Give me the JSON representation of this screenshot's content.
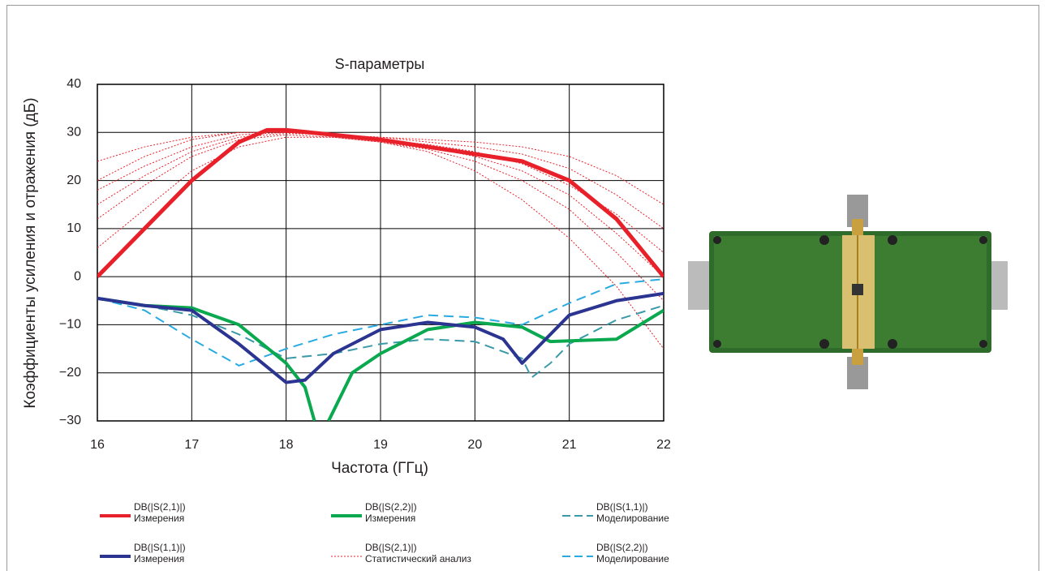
{
  "chart_data": {
    "type": "line",
    "title": "S-параметры",
    "xlabel": "Частота (ГГц)",
    "ylabel": "Коэффициенты усиления и отражения (дБ)",
    "xlim": [
      16,
      22
    ],
    "xticks": [
      16,
      17,
      18,
      19,
      20,
      21,
      22
    ],
    "ylim": [
      -30,
      40
    ],
    "yticks": [
      {
        "value": -30,
        "label": "−30"
      },
      {
        "value": -20,
        "label": "−20"
      },
      {
        "value": -10,
        "label": "−10"
      },
      0,
      10,
      20,
      30,
      40
    ],
    "grid": true,
    "series": [
      {
        "name": "DB(|S(2,1)|)",
        "method": "Измерения",
        "color": "#e8202a",
        "width": 5,
        "dash": "",
        "x": [
          16,
          16.5,
          17,
          17.5,
          17.8,
          18,
          18.5,
          19,
          19.5,
          20,
          20.5,
          21,
          21.5,
          22
        ],
        "values": [
          0,
          10,
          20,
          28,
          30.5,
          30.5,
          29.5,
          28.5,
          27,
          25.5,
          24,
          20,
          12,
          0
        ]
      },
      {
        "name": "DB(|S(2,2)|)",
        "method": "Измерения",
        "color": "#0aa84f",
        "width": 4,
        "dash": "",
        "x": [
          16,
          16.5,
          17,
          17.5,
          18,
          18.2,
          18.3,
          18.4,
          18.45,
          18.7,
          19,
          19.5,
          20,
          20.5,
          20.8,
          21.5,
          22
        ],
        "values": [
          -4.5,
          -6,
          -6.5,
          -10,
          -18,
          -23,
          -30,
          null,
          -30,
          -20,
          -16,
          -11,
          -9.5,
          -10.5,
          -13.5,
          -13,
          -7
        ]
      },
      {
        "name": "DB(|S(1,1)|)",
        "method": "Моделирование",
        "color": "#3a9aa8",
        "width": 2,
        "dash": "12 7",
        "x": [
          16,
          16.5,
          17,
          17.5,
          18,
          18.5,
          19,
          19.5,
          20,
          20.5,
          20.6,
          20.8,
          21,
          21.5,
          22
        ],
        "values": [
          -4.5,
          -6,
          -8,
          -12,
          -17,
          -16,
          -14,
          -13,
          -13.5,
          -17,
          -21,
          -18,
          -14,
          -9,
          -6
        ]
      },
      {
        "name": "DB(|S(1,1)|)",
        "method": "Измерения",
        "color": "#2b3490",
        "width": 4,
        "dash": "",
        "x": [
          16,
          16.5,
          17,
          17.5,
          18,
          18.2,
          18.5,
          19,
          19.5,
          20,
          20.3,
          20.5,
          20.7,
          21,
          21.5,
          22
        ],
        "values": [
          -4.5,
          -6,
          -7,
          -14,
          -22,
          -21.5,
          -16,
          -11,
          -9.5,
          -10.5,
          -13,
          -18,
          -14,
          -8,
          -5,
          -3.5
        ]
      },
      {
        "name": "DB(|S(2,1)|)",
        "method": "Статистический анализ",
        "color": "#e8202a",
        "width": 1,
        "dash": "2 2",
        "x": [
          16,
          16.5,
          17,
          17.5,
          18,
          18.5,
          19,
          19.5,
          20,
          20.5,
          21,
          21.5,
          22
        ],
        "curves": [
          [
            24,
            27,
            29,
            30,
            30,
            29.5,
            29,
            28.5,
            28,
            27,
            25,
            21,
            15
          ],
          [
            18,
            23,
            27,
            29.5,
            30,
            29.5,
            28.5,
            27.5,
            26,
            23.5,
            19,
            13,
            5
          ],
          [
            12,
            19,
            25,
            28.5,
            29.5,
            29,
            28,
            26.5,
            24,
            20,
            14,
            5,
            -5
          ],
          [
            6,
            14,
            22,
            27,
            29,
            29,
            28,
            26,
            22,
            16,
            8,
            -2,
            -15
          ],
          [
            20,
            25,
            28.5,
            30,
            30,
            29.5,
            29,
            28,
            27,
            25.5,
            22.5,
            17,
            10
          ],
          [
            15,
            21,
            26,
            29,
            29.8,
            29.5,
            28.5,
            27,
            25,
            22,
            17,
            9,
            0
          ]
        ]
      },
      {
        "name": "DB(|S(2,2)|)",
        "method": "Моделирование",
        "color": "#29abe2",
        "width": 2,
        "dash": "12 7",
        "x": [
          16,
          16.5,
          17,
          17.5,
          18,
          18.5,
          19,
          19.5,
          20,
          20.5,
          21,
          21.5,
          22
        ],
        "values": [
          -4.5,
          -7,
          -13,
          -18.5,
          -15,
          -12,
          -10,
          -8,
          -8.5,
          -10,
          -5.5,
          -1.5,
          -0.5
        ]
      }
    ]
  }
}
